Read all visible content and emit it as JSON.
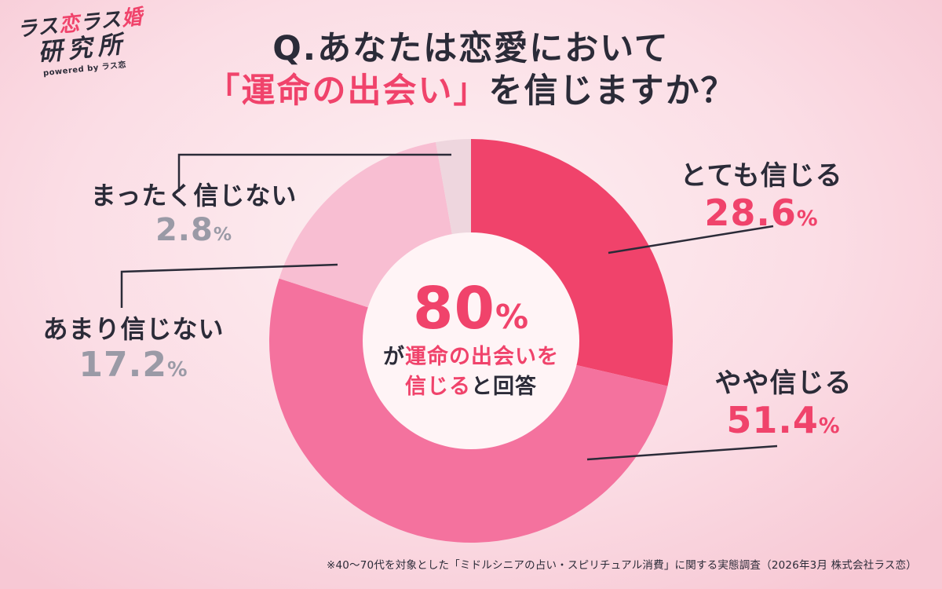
{
  "accent_pink": "#f0436b",
  "dark_text": "#2b2b38",
  "logo": {
    "seg1": "ラス",
    "seg2": "恋",
    "seg3": "ラス",
    "seg4": "婚",
    "line2": "研究所",
    "powered": "powered by ラス恋"
  },
  "title": {
    "line1": "Q.あなたは恋愛において",
    "line2_pink": "「運命の出会い」",
    "line2_dark": "を信じますか？"
  },
  "center": {
    "value": "80",
    "unit": "%",
    "l2_dark": "が",
    "l2_pink": "運命の出会いを",
    "l3_pink": "信じる",
    "l3_dark": "と回答"
  },
  "labels": {
    "very": {
      "label": "とても信じる",
      "value": "28.6",
      "unit": "%"
    },
    "somewhat": {
      "label": "やや信じる",
      "value": "51.4",
      "unit": "%"
    },
    "not_really": {
      "label": "あまり信じない",
      "value": "17.2",
      "unit": "%"
    },
    "not_at_all": {
      "label": "まったく信じない",
      "value": "2.8",
      "unit": "%"
    }
  },
  "footnote": "※40〜70代を対象とした「ミドルシニアの占い・スピリチュアル消費」に関する実態調査（2026年3月 株式会社ラス恋）",
  "chart_data": {
    "type": "pie",
    "donut": true,
    "title": "Q.あなたは恋愛において「運命の出会い」を信じますか？",
    "categories": [
      "とても信じる",
      "やや信じる",
      "あまり信じない",
      "まったく信じない"
    ],
    "values": [
      28.6,
      51.4,
      17.2,
      2.8
    ],
    "colors": [
      "#f0436b",
      "#f4729e",
      "#f8bed2",
      "#eed6de"
    ],
    "value_label_colors": [
      "#f0436b",
      "#f0436b",
      "#9a9aa6",
      "#9a9aa6"
    ],
    "start_angle": "top",
    "direction": "clockwise",
    "hole_color": "#fff4f6",
    "center_text": "80%が運命の出会いを信じると回答",
    "legend_position": "callouts"
  }
}
